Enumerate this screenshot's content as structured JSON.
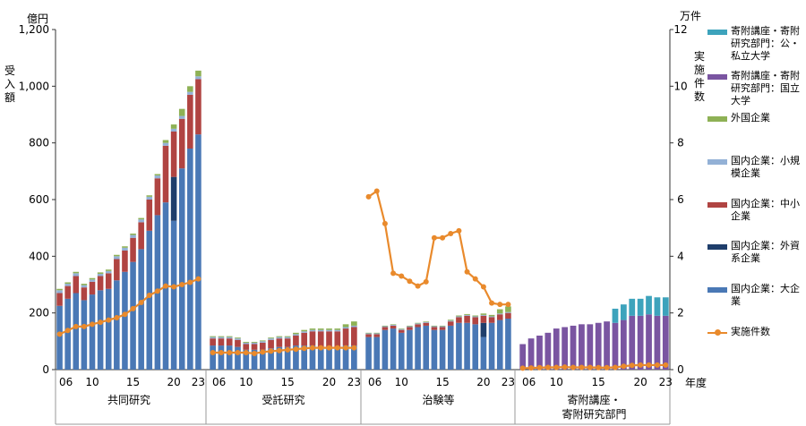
{
  "axes": {
    "left_unit": "億円",
    "left_label": "受入額",
    "right_unit": "万件",
    "right_label": "実施件数",
    "x_unit": "年度",
    "left_ticks": [
      "0",
      "200",
      "400",
      "600",
      "800",
      "1,000",
      "1,200"
    ],
    "right_ticks": [
      "0",
      "2",
      "4",
      "6",
      "8",
      "10",
      "12"
    ]
  },
  "chart_data": {
    "type": "bar",
    "stacked": true,
    "ylim": [
      0,
      1200
    ],
    "y2lim": [
      0,
      12
    ],
    "colors": {
      "large_domestic": "#4a78b5",
      "foreign_capital": "#1f3e6b",
      "small_medium": "#b04442",
      "small_scale": "#93b1d6",
      "foreign": "#8eb155",
      "endowed_national": "#7a55a1",
      "endowed_public_private": "#3da3bc",
      "count_line": "#e98a2c"
    },
    "legend": [
      {
        "key": "endowed_public_private",
        "label": "寄附講座・寄附研究部門：公・私立大学",
        "kind": "bar"
      },
      {
        "key": "endowed_national",
        "label": "寄附講座・寄附研究部門：国立大学",
        "kind": "bar"
      },
      {
        "key": "foreign",
        "label": "外国企業",
        "kind": "bar"
      },
      {
        "key": "small_scale",
        "label": "国内企業：小規模企業",
        "kind": "bar"
      },
      {
        "key": "small_medium",
        "label": "国内企業：中小企業",
        "kind": "bar"
      },
      {
        "key": "foreign_capital",
        "label": "国内企業：外資系企業",
        "kind": "bar"
      },
      {
        "key": "large_domestic",
        "label": "国内企業：大企業",
        "kind": "bar"
      },
      {
        "key": "count_line",
        "label": "実施件数",
        "kind": "line"
      }
    ],
    "groups": [
      {
        "name": "共同研究",
        "tick_labels": [
          "06",
          "10",
          "15",
          "20",
          "23"
        ],
        "years": [
          2006,
          2007,
          2008,
          2009,
          2010,
          2011,
          2012,
          2013,
          2014,
          2015,
          2016,
          2017,
          2018,
          2019,
          2020,
          2021,
          2022,
          2023
        ],
        "series": {
          "large_domestic": [
            225,
            250,
            270,
            245,
            265,
            280,
            285,
            315,
            345,
            380,
            425,
            490,
            545,
            590,
            525,
            710,
            780,
            830
          ],
          "foreign_capital": [
            0,
            0,
            0,
            0,
            0,
            0,
            0,
            0,
            0,
            0,
            0,
            0,
            0,
            0,
            155,
            0,
            0,
            0
          ],
          "small_medium": [
            45,
            45,
            60,
            45,
            45,
            50,
            55,
            75,
            75,
            85,
            95,
            110,
            130,
            200,
            160,
            175,
            190,
            195
          ],
          "small_scale": [
            10,
            8,
            10,
            8,
            8,
            8,
            8,
            10,
            10,
            10,
            10,
            10,
            10,
            10,
            10,
            10,
            10,
            10
          ],
          "foreign": [
            5,
            5,
            5,
            5,
            5,
            5,
            5,
            5,
            5,
            5,
            5,
            5,
            5,
            10,
            15,
            25,
            20,
            20
          ]
        },
        "counts": [
          1.25,
          1.38,
          1.52,
          1.52,
          1.6,
          1.67,
          1.75,
          1.83,
          1.95,
          2.15,
          2.37,
          2.62,
          2.77,
          2.95,
          2.92,
          3.0,
          3.08,
          3.2
        ]
      },
      {
        "name": "受託研究",
        "tick_labels": [
          "06",
          "10",
          "15",
          "20",
          "23"
        ],
        "years": [
          2006,
          2007,
          2008,
          2009,
          2010,
          2011,
          2012,
          2013,
          2014,
          2015,
          2016,
          2017,
          2018,
          2019,
          2020,
          2021,
          2022,
          2023
        ],
        "series": {
          "large_domestic": [
            85,
            85,
            85,
            80,
            70,
            70,
            70,
            75,
            80,
            80,
            85,
            85,
            85,
            80,
            80,
            80,
            85,
            85
          ],
          "small_medium": [
            25,
            25,
            25,
            25,
            20,
            20,
            25,
            30,
            30,
            30,
            35,
            45,
            50,
            55,
            55,
            55,
            60,
            65
          ],
          "small_scale": [
            5,
            5,
            5,
            5,
            5,
            5,
            5,
            5,
            5,
            5,
            5,
            5,
            5,
            5,
            5,
            5,
            5,
            5
          ],
          "foreign": [
            3,
            3,
            3,
            3,
            3,
            3,
            3,
            3,
            3,
            3,
            5,
            5,
            5,
            5,
            5,
            5,
            10,
            15
          ]
        },
        "counts": [
          0.6,
          0.6,
          0.6,
          0.6,
          0.6,
          0.57,
          0.62,
          0.65,
          0.67,
          0.7,
          0.72,
          0.75,
          0.77,
          0.77,
          0.77,
          0.77,
          0.77,
          0.77
        ]
      },
      {
        "name": "治験等",
        "tick_labels": [
          "06",
          "10",
          "15",
          "20",
          "23"
        ],
        "years": [
          2006,
          2007,
          2008,
          2009,
          2010,
          2011,
          2012,
          2013,
          2014,
          2015,
          2016,
          2017,
          2018,
          2019,
          2020,
          2021,
          2022,
          2023
        ],
        "series": {
          "large_domestic": [
            115,
            115,
            140,
            145,
            130,
            140,
            150,
            155,
            140,
            140,
            155,
            165,
            165,
            160,
            115,
            165,
            175,
            180
          ],
          "foreign_capital": [
            0,
            0,
            0,
            0,
            0,
            0,
            0,
            0,
            0,
            0,
            0,
            0,
            0,
            0,
            50,
            0,
            0,
            0
          ],
          "small_medium": [
            10,
            10,
            10,
            10,
            10,
            10,
            10,
            10,
            10,
            10,
            15,
            20,
            25,
            25,
            25,
            20,
            20,
            20
          ],
          "small_scale": [
            3,
            3,
            3,
            3,
            3,
            3,
            3,
            3,
            3,
            3,
            3,
            3,
            3,
            3,
            3,
            3,
            3,
            3
          ],
          "foreign": [
            2,
            2,
            2,
            2,
            2,
            2,
            2,
            2,
            2,
            2,
            3,
            3,
            3,
            3,
            5,
            5,
            15,
            20
          ]
        },
        "counts": [
          6.1,
          6.3,
          5.15,
          3.4,
          3.3,
          3.12,
          2.95,
          3.1,
          4.65,
          4.65,
          4.8,
          4.9,
          3.45,
          3.2,
          2.92,
          2.35,
          2.3,
          2.3
        ]
      },
      {
        "name": "寄附講座・寄附研究部門",
        "tick_labels": [
          "06",
          "10",
          "15",
          "20",
          "23"
        ],
        "years": [
          2006,
          2007,
          2008,
          2009,
          2010,
          2011,
          2012,
          2013,
          2014,
          2015,
          2016,
          2017,
          2018,
          2019,
          2020,
          2021,
          2022,
          2023
        ],
        "series": {
          "endowed_national": [
            90,
            110,
            120,
            130,
            145,
            150,
            155,
            160,
            160,
            165,
            170,
            165,
            175,
            190,
            190,
            195,
            190,
            190
          ],
          "endowed_public_private": [
            0,
            0,
            0,
            0,
            0,
            0,
            0,
            0,
            0,
            0,
            0,
            50,
            55,
            60,
            60,
            65,
            65,
            65
          ]
        },
        "counts": [
          0.05,
          0.06,
          0.07,
          0.08,
          0.08,
          0.09,
          0.08,
          0.08,
          0.08,
          0.07,
          0.07,
          0.08,
          0.12,
          0.15,
          0.16,
          0.16,
          0.16,
          0.16
        ]
      }
    ]
  }
}
